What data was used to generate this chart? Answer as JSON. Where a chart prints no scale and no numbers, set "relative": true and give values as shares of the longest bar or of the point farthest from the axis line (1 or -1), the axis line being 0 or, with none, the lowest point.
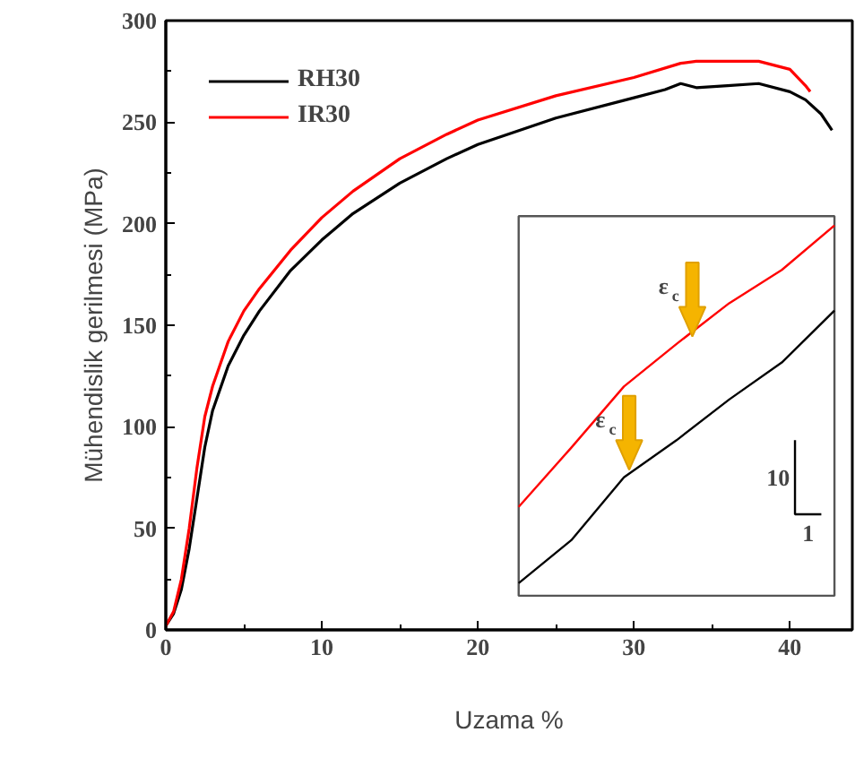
{
  "chart_data": [
    {
      "type": "line",
      "xlabel": "Uzama %",
      "ylabel": "Mühendislik gerilmesi (MPa)",
      "xlim": [
        0,
        44
      ],
      "ylim": [
        0,
        300
      ],
      "xticks": [
        0,
        10,
        20,
        30,
        40
      ],
      "yticks": [
        0,
        50,
        100,
        150,
        200,
        250,
        300
      ],
      "grid": false,
      "legend": "top left",
      "line_style": "solid",
      "marker": "none",
      "series": [
        {
          "name": "RH30",
          "color": "#000000",
          "x": [
            0,
            0.5,
            1,
            1.5,
            2,
            2.5,
            3,
            4,
            5,
            6,
            8,
            10,
            12,
            15,
            18,
            20,
            25,
            30,
            32,
            33,
            34,
            36,
            38,
            40,
            41,
            42,
            42.7
          ],
          "values": [
            2,
            8,
            20,
            40,
            65,
            90,
            108,
            130,
            145,
            157,
            177,
            192,
            205,
            220,
            232,
            239,
            252,
            262,
            266,
            269,
            267,
            268,
            269,
            265,
            261,
            254,
            246
          ]
        },
        {
          "name": "IR30",
          "color": "#ff0000",
          "x": [
            0,
            0.5,
            1,
            1.5,
            2,
            2.5,
            3,
            4,
            5,
            6,
            8,
            10,
            12,
            15,
            18,
            20,
            25,
            30,
            33,
            34,
            36,
            38,
            40,
            41,
            41.3
          ],
          "values": [
            2,
            9,
            25,
            50,
            80,
            105,
            120,
            142,
            157,
            168,
            187,
            203,
            216,
            232,
            244,
            251,
            263,
            272,
            279,
            280,
            280,
            280,
            276,
            268,
            265
          ]
        }
      ]
    },
    {
      "type": "line",
      "relative": true,
      "categories": [
        null,
        null,
        null,
        null,
        null,
        null,
        null
      ],
      "legend": false,
      "annotations": [
        "ε$_{c}$",
        "ε$_{c}$",
        "10",
        "1"
      ],
      "series": [
        {
          "color": "#000000",
          "values": [
            0.034,
            0.15,
            0.32,
            0.42,
            0.53,
            0.63,
            0.77
          ]
        },
        {
          "color": "#ff0000",
          "values": [
            0.24,
            0.4,
            0.565,
            0.68,
            0.79,
            0.88,
            1.0
          ]
        }
      ]
    }
  ]
}
